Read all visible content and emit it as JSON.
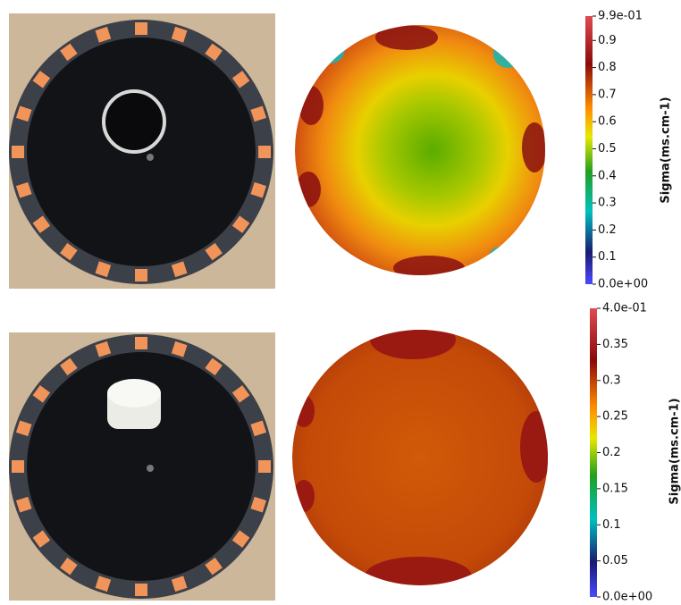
{
  "panels": [
    {
      "colorbar": {
        "title": "Sigma(ms.cm-1)",
        "lim": [
          0,
          0.99
        ],
        "ticks": [
          {
            "value": 0.99,
            "label": "9.9e-01"
          },
          0.9,
          0.8,
          0.7,
          0.6,
          0.5,
          0.4,
          0.3,
          0.2,
          0.1,
          {
            "value": 0,
            "label": "0.0e+00"
          }
        ]
      }
    },
    {
      "colorbar": {
        "title": "Sigma(ms.cm-1)",
        "lim": [
          0,
          0.4
        ],
        "ticks": [
          {
            "value": 0.4,
            "label": "4.0e-01"
          },
          0.35,
          0.3,
          0.25,
          0.2,
          0.15,
          0.1,
          0.05,
          {
            "value": 0,
            "label": "0.0e+00"
          }
        ]
      }
    }
  ]
}
